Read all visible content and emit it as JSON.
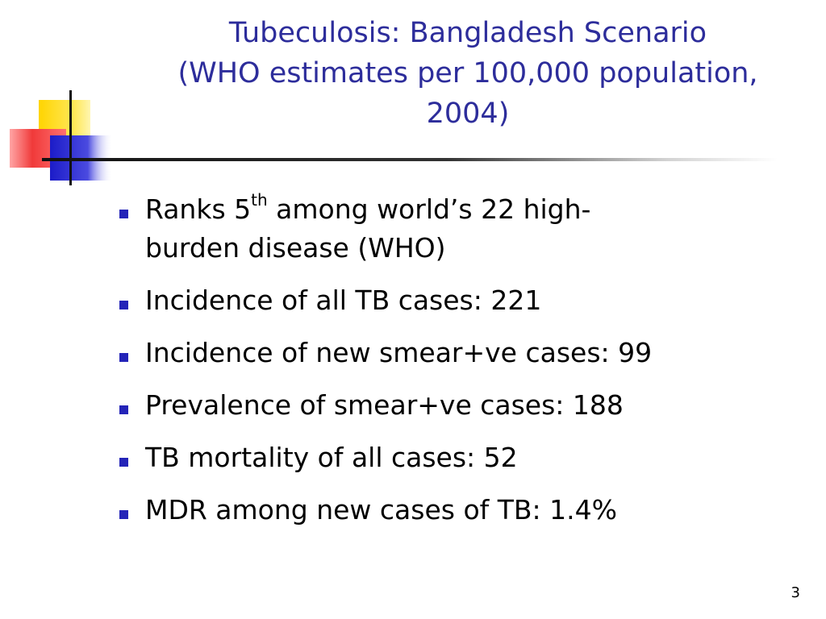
{
  "slide": {
    "title_line1": "Tubeculosis: Bangladesh Scenario",
    "title_line2": "(WHO estimates per 100,000 population,",
    "title_line3": "2004)",
    "bullets": [
      {
        "pre": "Ranks 5",
        "sup": "th",
        "post_line1": " among world’s 22 high-",
        "post_line2": "burden disease (WHO)"
      },
      {
        "text": "Incidence of all TB cases: 221"
      },
      {
        "text": "Incidence of new smear+ve cases: 99"
      },
      {
        "text": "Prevalence of smear+ve cases: 188"
      },
      {
        "text": "TB mortality of all cases: 52"
      },
      {
        "text": "MDR among new cases of TB: 1.4%"
      }
    ],
    "page_number": "3"
  },
  "colors": {
    "title": "#2d2d9b",
    "bullet_marker": "#2424b8",
    "logo_yellow": "#ffd400",
    "logo_red": "#f03a3a",
    "logo_blue": "#2a2ad0"
  },
  "icons": {
    "logo": "overlapping-squares-crosshair-icon",
    "bullet": "square-bullet-icon"
  }
}
